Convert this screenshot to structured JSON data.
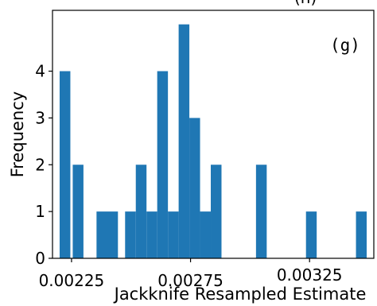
{
  "chart_data": {
    "type": "bar",
    "subtype": "histogram",
    "title": "(h)",
    "panel_label": "(g)",
    "xlabel": "Jackknife Resampled Estimate",
    "ylabel": "Frequency",
    "xlim": [
      0.00217,
      0.00352
    ],
    "ylim": [
      0,
      5.3
    ],
    "xticks": [
      0.00225,
      0.00275,
      0.00325
    ],
    "xtick_labels": [
      "0.00225",
      "0.00275",
      "0.00325"
    ],
    "yticks": [
      0,
      1,
      2,
      3,
      4
    ],
    "ytick_labels": [
      "0",
      "1",
      "2",
      "3",
      "4"
    ],
    "bar_color": "#1f77b4",
    "grid": false,
    "bins": [
      {
        "x0": 0.0022,
        "x1": 0.002245,
        "value": 4
      },
      {
        "x0": 0.002255,
        "x1": 0.0023,
        "value": 2
      },
      {
        "x0": 0.002355,
        "x1": 0.002445,
        "value": 1
      },
      {
        "x0": 0.002475,
        "x1": 0.00252,
        "value": 1
      },
      {
        "x0": 0.00252,
        "x1": 0.002565,
        "value": 2
      },
      {
        "x0": 0.002565,
        "x1": 0.00261,
        "value": 1
      },
      {
        "x0": 0.00261,
        "x1": 0.002655,
        "value": 4
      },
      {
        "x0": 0.002655,
        "x1": 0.0027,
        "value": 1
      },
      {
        "x0": 0.0027,
        "x1": 0.002745,
        "value": 5
      },
      {
        "x0": 0.002745,
        "x1": 0.00279,
        "value": 3
      },
      {
        "x0": 0.00279,
        "x1": 0.002835,
        "value": 1
      },
      {
        "x0": 0.002835,
        "x1": 0.00288,
        "value": 2
      },
      {
        "x0": 0.003025,
        "x1": 0.00307,
        "value": 2
      },
      {
        "x0": 0.003235,
        "x1": 0.00328,
        "value": 1
      },
      {
        "x0": 0.003445,
        "x1": 0.00349,
        "value": 1
      }
    ]
  }
}
